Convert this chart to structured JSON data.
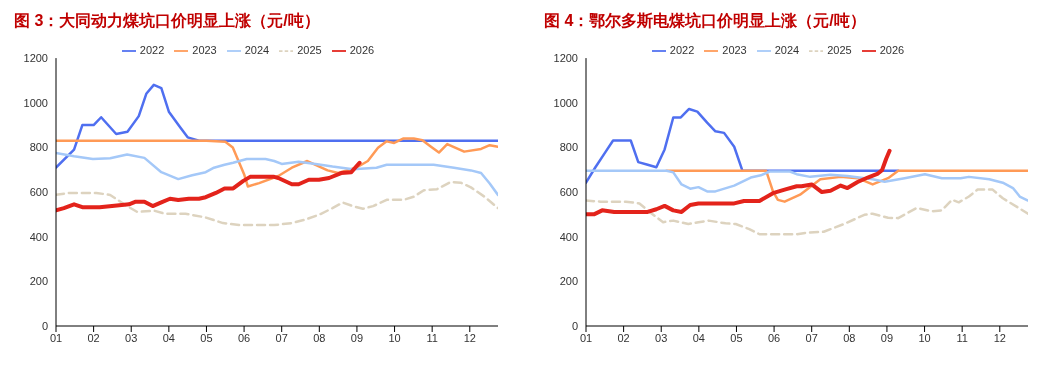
{
  "chart_data": [
    {
      "type": "line",
      "title": "图 3：大同动力煤坑口价明显上涨（元/吨）",
      "xlim": [
        1,
        12.75
      ],
      "xticks": [
        {
          "value": 1,
          "label": "01"
        },
        {
          "value": 2,
          "label": "02"
        },
        {
          "value": 3,
          "label": "03"
        },
        {
          "value": 4,
          "label": "04"
        },
        {
          "value": 5,
          "label": "05"
        },
        {
          "value": 6,
          "label": "06"
        },
        {
          "value": 7,
          "label": "07"
        },
        {
          "value": 8,
          "label": "08"
        },
        {
          "value": 9,
          "label": "09"
        },
        {
          "value": 10,
          "label": "10"
        },
        {
          "value": 11,
          "label": "11"
        },
        {
          "value": 12,
          "label": "12"
        }
      ],
      "ylim": [
        0,
        1200
      ],
      "yticks": [
        0,
        200,
        400,
        600,
        800,
        1000,
        1200
      ],
      "grid": false,
      "legend": "top",
      "marker": "none",
      "series": [
        {
          "name": "2022",
          "color": "#4f6ff0",
          "x": [
            1,
            1.48,
            1.7,
            2.0,
            2.2,
            2.6,
            2.9,
            3.2,
            3.4,
            3.6,
            3.8,
            4.0,
            4.3,
            4.5,
            4.8,
            12.75
          ],
          "values": [
            710,
            790,
            900,
            900,
            935,
            860,
            870,
            940,
            1040,
            1080,
            1065,
            960,
            890,
            845,
            830,
            830
          ]
        },
        {
          "name": "2023",
          "color": "#ff9a56",
          "x": [
            1,
            5.0,
            5.5,
            5.7,
            6.0,
            6.1,
            6.4,
            6.91,
            7.27,
            7.68,
            8.22,
            8.5,
            8.98,
            9.29,
            9.56,
            9.79,
            9.99,
            10.24,
            10.51,
            10.74,
            10.96,
            11.18,
            11.4,
            11.85,
            12.3,
            12.53,
            12.75
          ],
          "values": [
            830,
            830,
            825,
            800,
            680,
            625,
            640,
            672,
            709,
            739,
            697,
            685,
            709,
            739,
            798,
            827,
            820,
            840,
            840,
            832,
            804,
            777,
            815,
            781,
            793,
            810,
            803
          ]
        },
        {
          "name": "2024",
          "color": "#a4c8f8",
          "x": [
            1,
            1.48,
            1.98,
            2.44,
            2.89,
            3.35,
            3.8,
            4.25,
            4.62,
            4.98,
            5.2,
            5.48,
            5.71,
            6.07,
            6.57,
            6.8,
            7.0,
            7.45,
            7.9,
            8.35,
            8.89,
            9.52,
            9.79,
            11.04,
            11.58,
            12.03,
            12.3,
            12.53,
            12.75
          ],
          "values": [
            775,
            760,
            748,
            751,
            768,
            753,
            689,
            658,
            675,
            689,
            709,
            722,
            731,
            748,
            748,
            739,
            726,
            736,
            726,
            714,
            702,
            709,
            722,
            722,
            709,
            697,
            685,
            638,
            587
          ]
        },
        {
          "name": "2025",
          "color": "#ddd3bf",
          "line_style": "dashed",
          "x": [
            1,
            1.35,
            2.07,
            2.44,
            2.89,
            3.16,
            3.62,
            3.89,
            4.44,
            4.98,
            5.44,
            5.89,
            6.8,
            7.27,
            7.63,
            7.99,
            8.35,
            8.62,
            8.89,
            9.16,
            9.43,
            9.79,
            10.24,
            10.51,
            10.78,
            11.13,
            11.49,
            11.76,
            12.03,
            12.39,
            12.75
          ],
          "values": [
            588,
            596,
            596,
            587,
            537,
            511,
            516,
            503,
            503,
            486,
            461,
            452,
            452,
            461,
            477,
            498,
            528,
            553,
            537,
            525,
            537,
            565,
            565,
            579,
            608,
            613,
            645,
            642,
            621,
            579,
            528
          ]
        },
        {
          "name": "2026",
          "color": "#e3231b",
          "x": [
            1,
            1.21,
            1.48,
            1.7,
            2.16,
            2.62,
            2.94,
            3.12,
            3.35,
            3.57,
            3.8,
            4.03,
            4.25,
            4.53,
            4.8,
            4.98,
            5.25,
            5.48,
            5.71,
            5.98,
            6.16,
            6.8,
            6.91,
            7.27,
            7.45,
            7.72,
            7.99,
            8.26,
            8.58,
            8.85,
            9.07
          ],
          "values": [
            518,
            528,
            545,
            532,
            532,
            540,
            545,
            557,
            557,
            537,
            554,
            570,
            564,
            570,
            570,
            577,
            596,
            616,
            616,
            650,
            668,
            668,
            663,
            635,
            635,
            655,
            655,
            663,
            685,
            689,
            731
          ]
        }
      ]
    },
    {
      "type": "line",
      "title": "图 4：鄂尔多斯电煤坑口价明显上涨（元/吨）",
      "xlim": [
        1,
        12.75
      ],
      "xticks": [
        {
          "value": 1,
          "label": "01"
        },
        {
          "value": 2,
          "label": "02"
        },
        {
          "value": 3,
          "label": "03"
        },
        {
          "value": 4,
          "label": "04"
        },
        {
          "value": 5,
          "label": "05"
        },
        {
          "value": 6,
          "label": "06"
        },
        {
          "value": 7,
          "label": "07"
        },
        {
          "value": 8,
          "label": "08"
        },
        {
          "value": 9,
          "label": "09"
        },
        {
          "value": 10,
          "label": "10"
        },
        {
          "value": 11,
          "label": "11"
        },
        {
          "value": 12,
          "label": "12"
        }
      ],
      "ylim": [
        0,
        1200
      ],
      "yticks": [
        0,
        200,
        400,
        600,
        800,
        1000,
        1200
      ],
      "grid": false,
      "legend": "top",
      "marker": "none",
      "series": [
        {
          "name": "2022",
          "color": "#4f6ff0",
          "x": [
            1,
            1.25,
            1.52,
            1.72,
            2.19,
            2.39,
            2.64,
            2.87,
            3.09,
            3.32,
            3.52,
            3.74,
            3.96,
            4.22,
            4.44,
            4.67,
            4.94,
            5.16,
            9.3
          ],
          "values": [
            642,
            711,
            780,
            831,
            831,
            734,
            722,
            711,
            791,
            934,
            934,
            972,
            960,
            911,
            872,
            865,
            803,
            695,
            695
          ]
        },
        {
          "name": "2023",
          "color": "#ff9a56",
          "x": [
            3.14,
            5.79,
            5.97,
            6.1,
            6.28,
            6.69,
            7.23,
            7.77,
            8.22,
            8.62,
            9.03,
            9.3,
            12.75
          ],
          "values": [
            695,
            695,
            603,
            565,
            557,
            588,
            657,
            668,
            662,
            634,
            662,
            695,
            695
          ]
        },
        {
          "name": "2024",
          "color": "#a4c8f8",
          "x": [
            1,
            3.14,
            3.32,
            3.54,
            3.77,
            3.99,
            4.22,
            4.44,
            4.94,
            5.38,
            5.65,
            5.88,
            6.42,
            6.6,
            6.96,
            7.5,
            7.95,
            8.62,
            8.94,
            9.47,
            10.01,
            10.46,
            10.96,
            11.18,
            11.72,
            12.08,
            12.35,
            12.53,
            12.75
          ],
          "values": [
            695,
            695,
            688,
            634,
            615,
            622,
            603,
            603,
            629,
            665,
            675,
            692,
            692,
            680,
            668,
            677,
            672,
            657,
            646,
            662,
            680,
            662,
            662,
            668,
            657,
            642,
            618,
            580,
            562
          ]
        },
        {
          "name": "2025",
          "color": "#ddd3bf",
          "line_style": "dashed",
          "x": [
            1,
            1.39,
            2.06,
            2.42,
            2.69,
            3.05,
            3.32,
            3.72,
            3.99,
            4.26,
            4.71,
            4.98,
            5.34,
            5.61,
            6.6,
            6.87,
            7.32,
            7.86,
            8.4,
            8.62,
            9.03,
            9.3,
            9.79,
            10.19,
            10.46,
            10.73,
            10.91,
            11.18,
            11.41,
            11.81,
            12.08,
            12.53,
            12.75
          ],
          "values": [
            562,
            557,
            557,
            549,
            511,
            465,
            472,
            457,
            465,
            472,
            460,
            457,
            434,
            411,
            411,
            418,
            422,
            457,
            498,
            503,
            485,
            483,
            529,
            514,
            518,
            565,
            554,
            580,
            611,
            611,
            572,
            526,
            503
          ]
        },
        {
          "name": "2026",
          "color": "#e3231b",
          "x": [
            1,
            1.21,
            1.43,
            1.75,
            2.64,
            2.87,
            3.09,
            3.32,
            3.54,
            3.77,
            3.99,
            4.94,
            5.2,
            5.61,
            5.97,
            6.28,
            6.6,
            6.73,
            7.0,
            7.27,
            7.5,
            7.77,
            7.95,
            8.22,
            8.49,
            8.76,
            8.87,
            8.98,
            9.07
          ],
          "values": [
            500,
            500,
            518,
            511,
            511,
            523,
            538,
            518,
            511,
            542,
            549,
            549,
            560,
            560,
            595,
            611,
            626,
            626,
            634,
            600,
            606,
            629,
            618,
            645,
            665,
            683,
            698,
            749,
            785
          ]
        }
      ]
    }
  ]
}
